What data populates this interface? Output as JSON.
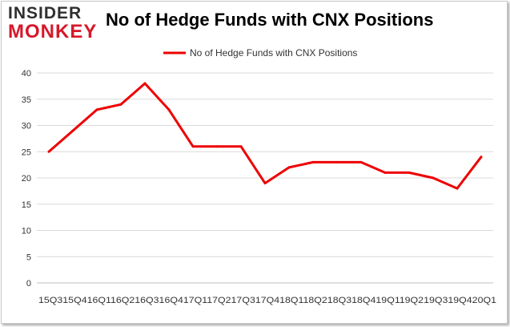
{
  "brand": {
    "logo_top": "INSIDER",
    "logo_bottom": "MONKEY"
  },
  "chart_data": {
    "type": "line",
    "title": "No of Hedge Funds with CNX Positions",
    "categories": [
      "15Q3",
      "15Q4",
      "16Q1",
      "16Q2",
      "16Q3",
      "16Q4",
      "17Q1",
      "17Q2",
      "17Q3",
      "17Q4",
      "18Q1",
      "18Q2",
      "18Q3",
      "18Q4",
      "19Q1",
      "19Q2",
      "19Q3",
      "19Q4",
      "20Q1"
    ],
    "series": [
      {
        "name": "No of Hedge Funds with CNX Positions",
        "values": [
          25,
          29,
          33,
          34,
          38,
          33,
          26,
          26,
          26,
          19,
          22,
          23,
          23,
          23,
          21,
          21,
          20,
          18,
          24
        ]
      }
    ],
    "ylim": [
      0,
      40
    ],
    "yticks": [
      0,
      5,
      10,
      15,
      20,
      25,
      30,
      35,
      40
    ],
    "grid": true,
    "legend_position": "top-center",
    "line_color": "#ee0000",
    "grid_color": "#d9d9d9"
  }
}
